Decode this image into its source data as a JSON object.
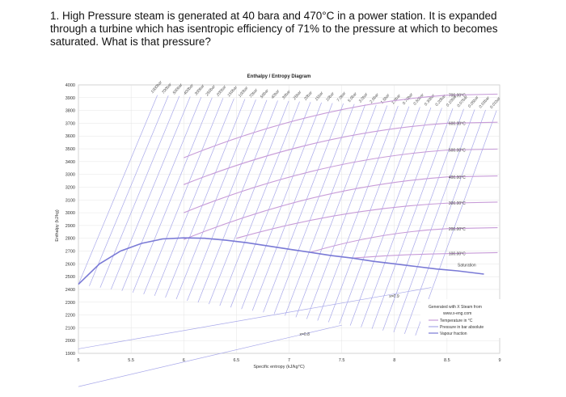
{
  "question": {
    "text": "1. High Pressure steam is generated at 40 bara and 470°C in a power station. It is expanded through a turbine which has isentropic efficiency of 71% to the pressure at which to becomes saturated. What is that pressure?"
  },
  "colors": {
    "temperature": "#c79bd8",
    "pressure": "#a8a8ea",
    "quality": "#a8a8ea",
    "saturation": "#7a7ad6",
    "grid": "#e4e4e4",
    "legend_link": "#3344cc"
  },
  "chart_data": {
    "type": "line",
    "title": "Enthalpy / Entropy Diagram",
    "xlabel": "Specific entropy (kJ/kg°C)",
    "ylabel": "Enthalpy (kJ/kg)",
    "xlim": [
      5,
      9
    ],
    "ylim": [
      1900,
      4000
    ],
    "xticks": [
      "5",
      "5.5",
      "6",
      "6.5",
      "7",
      "7.5",
      "8",
      "8.5",
      "9"
    ],
    "yticks": [
      "1900",
      "2000",
      "2100",
      "2200",
      "2300",
      "2400",
      "2500",
      "2600",
      "2700",
      "2800",
      "2900",
      "3000",
      "3100",
      "3200",
      "3300",
      "3400",
      "3500",
      "3600",
      "3700",
      "3800",
      "3900",
      "4000"
    ],
    "grid": true,
    "saturation_label": "Saturation",
    "saturation_curve": {
      "s": [
        5.0,
        5.2,
        5.4,
        5.6,
        5.8,
        6.0,
        6.2,
        6.4,
        6.6,
        6.8,
        7.0,
        7.2,
        7.4,
        7.6,
        7.8,
        8.0,
        8.2,
        8.4,
        8.6,
        8.85
      ],
      "h": [
        2440,
        2600,
        2700,
        2760,
        2795,
        2803,
        2800,
        2785,
        2765,
        2740,
        2715,
        2690,
        2665,
        2645,
        2620,
        2600,
        2580,
        2560,
        2545,
        2520
      ]
    },
    "temperature_lines": [
      {
        "label": "700.00°C",
        "s0": 6.0,
        "h0": 3430,
        "s1": 8.5,
        "h1": 3920
      },
      {
        "label": "600.00°C",
        "s0": 6.0,
        "h0": 3220,
        "s1": 8.5,
        "h1": 3700
      },
      {
        "label": "500.00°C",
        "s0": 6.0,
        "h0": 3000,
        "s1": 8.5,
        "h1": 3490
      },
      {
        "label": "400.00°C",
        "s0": 6.0,
        "h0": 2790,
        "s1": 8.5,
        "h1": 3280
      },
      {
        "label": "300.00°C",
        "s0": 6.5,
        "h0": 2800,
        "s1": 8.5,
        "h1": 3075
      },
      {
        "label": "200.00°C",
        "s0": 7.2,
        "h0": 2690,
        "s1": 8.5,
        "h1": 2875
      },
      {
        "label": "100.00°C",
        "s0": 7.6,
        "h0": 2645,
        "s1": 8.5,
        "h1": 2680
      }
    ],
    "pressure_labels": [
      "1000bar",
      "700bar",
      "500bar",
      "400bar",
      "300bar",
      "250bar",
      "200bar",
      "150bar",
      "100bar",
      "70bar",
      "50bar",
      "40bar",
      "30bar",
      "25bar",
      "20bar",
      "15bar",
      "10bar",
      "7.0bar",
      "5.0bar",
      "3.0bar",
      "2.0bar",
      "1.5bar",
      "1.0bar",
      "0.70bar",
      "0.50bar",
      "0.30bar",
      "0.20bar",
      "0.10bar",
      "0.07bar",
      "0.05bar",
      "0.03bar",
      "0.01bar"
    ],
    "quality_labels": [
      {
        "label": "x=0.9",
        "s": 7.95,
        "h": 2335
      },
      {
        "label": "x=0.8",
        "s": 7.1,
        "h": 2040
      }
    ],
    "legend": {
      "placement": "bottom-right",
      "title": "Generated with X Steam from",
      "link": "www.x-eng.com",
      "entries": [
        {
          "label": "Temperature in °C",
          "color_key": "temperature"
        },
        {
          "label": "Pressure in bar absolute",
          "color_key": "pressure"
        },
        {
          "label": "Vapour fraction",
          "color_key": "saturation"
        }
      ]
    }
  }
}
